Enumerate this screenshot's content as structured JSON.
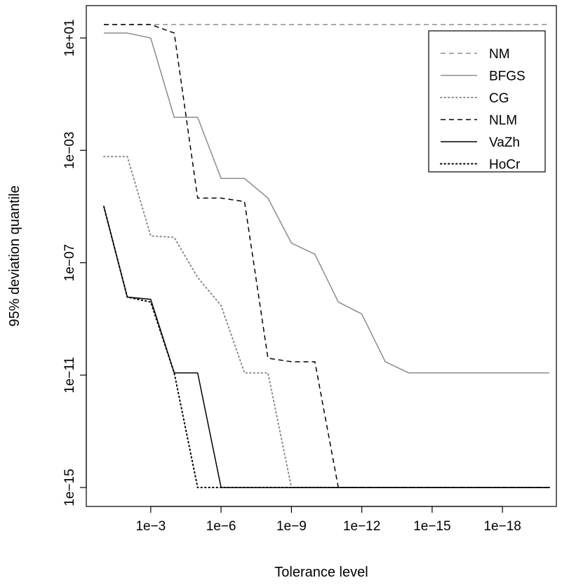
{
  "chart_data": {
    "type": "line",
    "title": "",
    "xlabel": "Tolerance level",
    "ylabel": "95% deviation quantile",
    "x_scale": "log10-reversed",
    "y_scale": "log10",
    "xlim": [
      0.1,
      1e-20
    ],
    "ylim": [
      1e-16,
      100.0
    ],
    "x_ticks": [
      0.001,
      1e-06,
      1e-09,
      1e-12,
      1e-15,
      1e-18
    ],
    "x_tick_labels": [
      "1e−3",
      "1e−6",
      "1e−9",
      "1e−12",
      "1e−15",
      "1e−18"
    ],
    "y_ticks": [
      10.0,
      0.001,
      1e-07,
      1e-11,
      1e-15
    ],
    "y_tick_labels": [
      "1e+01",
      "1e−03",
      "1e−07",
      "1e−11",
      "1e−15"
    ],
    "grid": false,
    "legend_position": "top-right",
    "series": [
      {
        "name": "NM",
        "color": "#8c8c8c",
        "dash": "dashed",
        "x": [
          0.1,
          1e-20
        ],
        "y": [
          30,
          30
        ]
      },
      {
        "name": "BFGS",
        "color": "#8c8c8c",
        "dash": "solid",
        "x": [
          0.1,
          0.01,
          0.001,
          0.0001,
          1e-05,
          1e-06,
          1e-07,
          1e-08,
          1e-09,
          1e-10,
          1e-11,
          1e-12,
          1e-13,
          1e-14,
          1e-15,
          1e-20
        ],
        "y": [
          15,
          15,
          10,
          0.015,
          0.015,
          0.0001,
          0.0001,
          2e-05,
          5e-07,
          2e-07,
          4e-09,
          1.5e-09,
          3e-11,
          1.2e-11,
          1.2e-11,
          1.2e-11
        ]
      },
      {
        "name": "CG",
        "color": "#8c8c8c",
        "dash": "dotted",
        "x": [
          0.1,
          0.01,
          0.001,
          0.0001,
          1e-05,
          1e-06,
          1e-07,
          1e-08,
          1e-09,
          1e-10,
          1e-20
        ],
        "y": [
          0.0006,
          0.0006,
          9e-07,
          8e-07,
          3e-08,
          3e-09,
          1.2e-11,
          1.2e-11,
          1e-15,
          1e-15,
          1e-15
        ]
      },
      {
        "name": "NLM",
        "color": "#000000",
        "dash": "dashed",
        "x": [
          0.1,
          0.01,
          0.001,
          0.0001,
          1e-05,
          1e-06,
          1e-07,
          1e-08,
          1e-09,
          1e-10,
          1e-11,
          1e-20
        ],
        "y": [
          30,
          30,
          30,
          15,
          2e-05,
          2e-05,
          1.5e-05,
          4e-11,
          3e-11,
          3e-11,
          1e-15,
          1e-15
        ]
      },
      {
        "name": "VaZh",
        "color": "#000000",
        "dash": "solid",
        "x": [
          0.1,
          0.01,
          0.001,
          0.0001,
          1e-05,
          1e-06,
          1e-20
        ],
        "y": [
          1e-05,
          6e-09,
          5e-09,
          1.2e-11,
          1.2e-11,
          1e-15,
          1e-15
        ]
      },
      {
        "name": "HoCr",
        "color": "#000000",
        "dash": "dotted",
        "x": [
          0.1,
          0.01,
          0.001,
          0.0001,
          1e-05,
          1e-06,
          1e-20
        ],
        "y": [
          1e-05,
          6e-09,
          4e-09,
          1.2e-11,
          1e-15,
          1e-15,
          1e-15
        ]
      }
    ]
  }
}
